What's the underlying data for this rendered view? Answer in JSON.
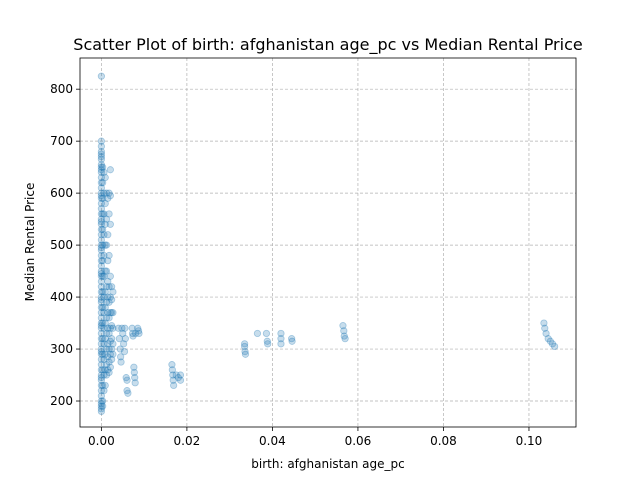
{
  "chart_data": {
    "type": "scatter",
    "title": "Scatter Plot of birth: afghanistan age_pc vs Median Rental Price",
    "xlabel": "birth: afghanistan age_pc",
    "ylabel": "Median Rental Price",
    "xlim": [
      -0.005,
      0.111
    ],
    "ylim": [
      150,
      860
    ],
    "xticks": [
      0.0,
      0.02,
      0.04,
      0.06,
      0.08,
      0.1
    ],
    "xtick_labels": [
      "0.00",
      "0.02",
      "0.04",
      "0.06",
      "0.08",
      "0.10"
    ],
    "yticks": [
      200,
      300,
      400,
      500,
      600,
      700,
      800
    ],
    "ytick_labels": [
      "200",
      "300",
      "400",
      "500",
      "600",
      "700",
      "800"
    ],
    "grid": true,
    "point_color": "#1f77b4",
    "point_alpha": 0.25,
    "series": [
      {
        "points": [
          [
            0.0,
            825
          ],
          [
            0.0,
            700
          ],
          [
            0.0,
            690
          ],
          [
            0.0,
            680
          ],
          [
            0.0,
            675
          ],
          [
            0.0,
            670
          ],
          [
            0.0,
            665
          ],
          [
            0.0,
            655
          ],
          [
            0.0,
            650
          ],
          [
            0.0,
            645
          ],
          [
            0.0,
            640
          ],
          [
            0.0,
            630
          ],
          [
            0.0,
            620
          ],
          [
            0.0,
            610
          ],
          [
            0.0,
            600
          ],
          [
            0.0,
            595
          ],
          [
            0.0,
            590
          ],
          [
            0.0,
            580
          ],
          [
            0.0,
            570
          ],
          [
            0.0,
            560
          ],
          [
            0.0,
            550
          ],
          [
            0.0,
            545
          ],
          [
            0.0,
            540
          ],
          [
            0.0,
            530
          ],
          [
            0.0,
            520
          ],
          [
            0.0,
            510
          ],
          [
            0.0,
            500
          ],
          [
            0.0,
            495
          ],
          [
            0.0,
            490
          ],
          [
            0.0,
            480
          ],
          [
            0.0,
            470
          ],
          [
            0.0,
            460
          ],
          [
            0.0,
            450
          ],
          [
            0.0,
            445
          ],
          [
            0.0,
            440
          ],
          [
            0.0,
            430
          ],
          [
            0.0,
            420
          ],
          [
            0.0,
            410
          ],
          [
            0.0,
            400
          ],
          [
            0.0,
            395
          ],
          [
            0.0,
            390
          ],
          [
            0.0,
            380
          ],
          [
            0.0,
            370
          ],
          [
            0.0,
            360
          ],
          [
            0.0,
            350
          ],
          [
            0.0,
            345
          ],
          [
            0.0,
            340
          ],
          [
            0.0,
            330
          ],
          [
            0.0,
            320
          ],
          [
            0.0,
            310
          ],
          [
            0.0,
            300
          ],
          [
            0.0,
            295
          ],
          [
            0.0,
            290
          ],
          [
            0.0,
            280
          ],
          [
            0.0,
            270
          ],
          [
            0.0,
            260
          ],
          [
            0.0,
            250
          ],
          [
            0.0,
            245
          ],
          [
            0.0,
            240
          ],
          [
            0.0,
            230
          ],
          [
            0.0,
            220
          ],
          [
            0.0,
            210
          ],
          [
            0.0,
            200
          ],
          [
            0.0,
            195
          ],
          [
            0.0,
            190
          ],
          [
            0.0,
            185
          ],
          [
            0.0,
            180
          ],
          [
            0.0003,
            650
          ],
          [
            0.0003,
            620
          ],
          [
            0.0003,
            590
          ],
          [
            0.0003,
            560
          ],
          [
            0.0003,
            530
          ],
          [
            0.0003,
            500
          ],
          [
            0.0003,
            470
          ],
          [
            0.0003,
            440
          ],
          [
            0.0003,
            410
          ],
          [
            0.0003,
            380
          ],
          [
            0.0003,
            350
          ],
          [
            0.0003,
            320
          ],
          [
            0.0003,
            290
          ],
          [
            0.0003,
            260
          ],
          [
            0.0003,
            230
          ],
          [
            0.0003,
            200
          ],
          [
            0.0003,
            190
          ],
          [
            0.0006,
            640
          ],
          [
            0.0006,
            600
          ],
          [
            0.0006,
            560
          ],
          [
            0.0006,
            520
          ],
          [
            0.0006,
            480
          ],
          [
            0.0006,
            440
          ],
          [
            0.0006,
            400
          ],
          [
            0.0006,
            370
          ],
          [
            0.0006,
            340
          ],
          [
            0.0006,
            310
          ],
          [
            0.0006,
            280
          ],
          [
            0.0006,
            250
          ],
          [
            0.0006,
            220
          ],
          [
            0.0009,
            630
          ],
          [
            0.0009,
            580
          ],
          [
            0.0009,
            540
          ],
          [
            0.0009,
            500
          ],
          [
            0.0009,
            450
          ],
          [
            0.0009,
            410
          ],
          [
            0.0009,
            380
          ],
          [
            0.0009,
            350
          ],
          [
            0.0009,
            320
          ],
          [
            0.0009,
            290
          ],
          [
            0.0009,
            260
          ],
          [
            0.0009,
            230
          ],
          [
            0.0012,
            600
          ],
          [
            0.0012,
            550
          ],
          [
            0.0012,
            500
          ],
          [
            0.0012,
            450
          ],
          [
            0.0012,
            420
          ],
          [
            0.0012,
            390
          ],
          [
            0.0012,
            360
          ],
          [
            0.0012,
            330
          ],
          [
            0.0012,
            300
          ],
          [
            0.0012,
            270
          ],
          [
            0.0012,
            250
          ],
          [
            0.0015,
            590
          ],
          [
            0.0015,
            520
          ],
          [
            0.0015,
            470
          ],
          [
            0.0015,
            430
          ],
          [
            0.0015,
            400
          ],
          [
            0.0015,
            370
          ],
          [
            0.0015,
            340
          ],
          [
            0.0015,
            310
          ],
          [
            0.0015,
            285
          ],
          [
            0.0015,
            260
          ],
          [
            0.0018,
            600
          ],
          [
            0.0018,
            560
          ],
          [
            0.0018,
            480
          ],
          [
            0.0018,
            420
          ],
          [
            0.0018,
            390
          ],
          [
            0.0018,
            360
          ],
          [
            0.0018,
            330
          ],
          [
            0.0018,
            300
          ],
          [
            0.0018,
            275
          ],
          [
            0.0018,
            255
          ],
          [
            0.0021,
            645
          ],
          [
            0.0021,
            595
          ],
          [
            0.0021,
            540
          ],
          [
            0.0021,
            440
          ],
          [
            0.0021,
            400
          ],
          [
            0.0021,
            370
          ],
          [
            0.0021,
            340
          ],
          [
            0.0021,
            315
          ],
          [
            0.0021,
            290
          ],
          [
            0.0021,
            265
          ],
          [
            0.0024,
            420
          ],
          [
            0.0024,
            395
          ],
          [
            0.0024,
            370
          ],
          [
            0.0024,
            345
          ],
          [
            0.0024,
            320
          ],
          [
            0.0024,
            300
          ],
          [
            0.0024,
            280
          ],
          [
            0.0027,
            410
          ],
          [
            0.0027,
            370
          ],
          [
            0.0027,
            340
          ],
          [
            0.0027,
            310
          ],
          [
            0.0027,
            290
          ],
          [
            0.004,
            340
          ],
          [
            0.0042,
            320
          ],
          [
            0.0044,
            300
          ],
          [
            0.0045,
            285
          ],
          [
            0.0046,
            275
          ],
          [
            0.0048,
            340
          ],
          [
            0.005,
            330
          ],
          [
            0.0052,
            310
          ],
          [
            0.0054,
            295
          ],
          [
            0.0055,
            340
          ],
          [
            0.0056,
            320
          ],
          [
            0.0058,
            245
          ],
          [
            0.006,
            240
          ],
          [
            0.006,
            220
          ],
          [
            0.0062,
            215
          ],
          [
            0.0072,
            340
          ],
          [
            0.0073,
            330
          ],
          [
            0.0074,
            325
          ],
          [
            0.0076,
            265
          ],
          [
            0.0077,
            255
          ],
          [
            0.0078,
            245
          ],
          [
            0.0079,
            235
          ],
          [
            0.008,
            330
          ],
          [
            0.0085,
            340
          ],
          [
            0.0087,
            335
          ],
          [
            0.0088,
            330
          ],
          [
            0.0165,
            270
          ],
          [
            0.0166,
            260
          ],
          [
            0.0167,
            250
          ],
          [
            0.0168,
            240
          ],
          [
            0.0169,
            230
          ],
          [
            0.0175,
            250
          ],
          [
            0.018,
            245
          ],
          [
            0.0185,
            250
          ],
          [
            0.0185,
            240
          ],
          [
            0.0335,
            310
          ],
          [
            0.0335,
            305
          ],
          [
            0.0336,
            295
          ],
          [
            0.0337,
            290
          ],
          [
            0.0365,
            330
          ],
          [
            0.0386,
            330
          ],
          [
            0.0388,
            315
          ],
          [
            0.0389,
            310
          ],
          [
            0.042,
            330
          ],
          [
            0.042,
            320
          ],
          [
            0.042,
            310
          ],
          [
            0.0445,
            320
          ],
          [
            0.0446,
            315
          ],
          [
            0.0565,
            345
          ],
          [
            0.0567,
            335
          ],
          [
            0.0568,
            325
          ],
          [
            0.057,
            320
          ],
          [
            0.1035,
            350
          ],
          [
            0.1037,
            340
          ],
          [
            0.104,
            330
          ],
          [
            0.1045,
            320
          ],
          [
            0.105,
            315
          ],
          [
            0.1055,
            310
          ],
          [
            0.106,
            305
          ]
        ]
      }
    ]
  }
}
